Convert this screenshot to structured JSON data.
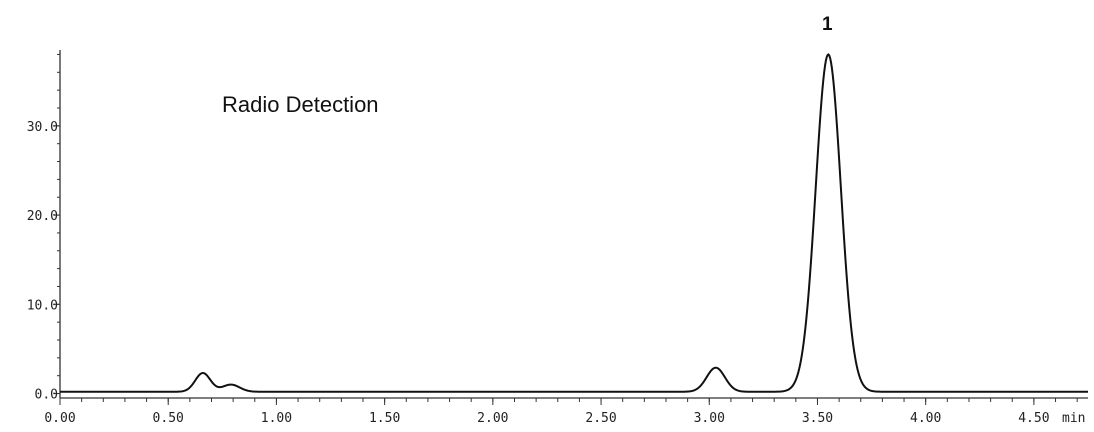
{
  "chart_data": {
    "type": "line",
    "title": "",
    "xlabel": "",
    "ylabel": "",
    "x_unit_label": "min",
    "xlim": [
      0.0,
      4.75
    ],
    "ylim": [
      -0.5,
      38.5
    ],
    "x_ticks": [
      {
        "value": 0.0,
        "label": "0.00"
      },
      {
        "value": 0.5,
        "label": "0.50"
      },
      {
        "value": 1.0,
        "label": "1.00"
      },
      {
        "value": 1.5,
        "label": "1.50"
      },
      {
        "value": 2.0,
        "label": "2.00"
      },
      {
        "value": 2.5,
        "label": "2.50"
      },
      {
        "value": 3.0,
        "label": "3.00"
      },
      {
        "value": 3.5,
        "label": "3.50"
      },
      {
        "value": 4.0,
        "label": "4.00"
      },
      {
        "value": 4.5,
        "label": "4.50"
      }
    ],
    "x_minor_step": 0.1,
    "y_ticks": [
      {
        "value": 0.0,
        "label": "0.0"
      },
      {
        "value": 10.0,
        "label": "10.0"
      },
      {
        "value": 20.0,
        "label": "20.0"
      },
      {
        "value": 30.0,
        "label": "30.0"
      }
    ],
    "y_minor_step": 2.0,
    "grid": false,
    "annotations": [
      {
        "text": "Radio Detection"
      }
    ],
    "peaks": [
      {
        "label": "1",
        "x": 3.55,
        "y": 38.0
      }
    ],
    "series": [
      {
        "baseline": 0.2,
        "peaks": [
          {
            "x": 0.66,
            "height": 2.1,
            "sigma": 0.035
          },
          {
            "x": 0.79,
            "height": 0.8,
            "sigma": 0.04
          },
          {
            "x": 3.03,
            "height": 2.7,
            "sigma": 0.042
          },
          {
            "x": 3.55,
            "height": 37.8,
            "sigma": 0.058
          }
        ]
      }
    ]
  }
}
